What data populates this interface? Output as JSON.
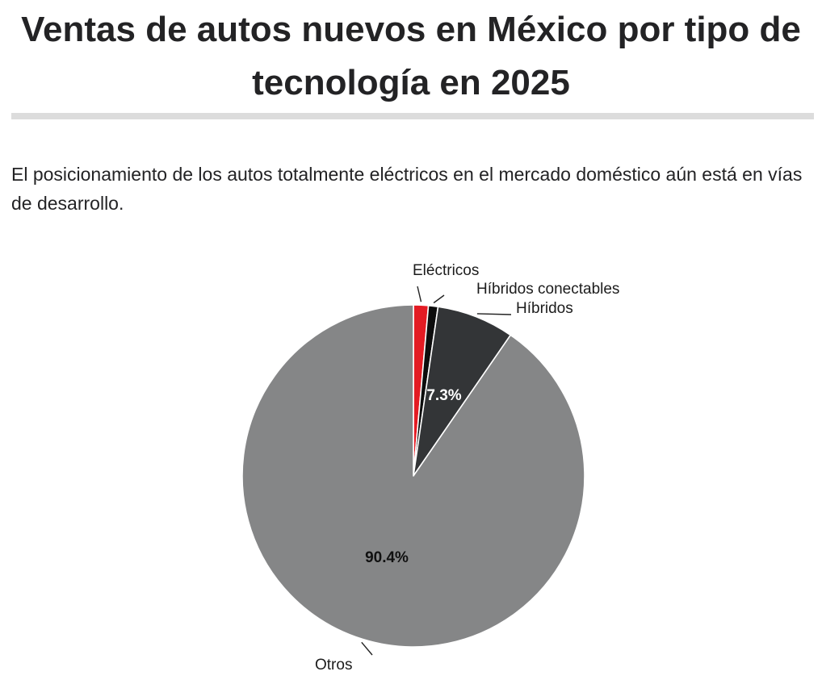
{
  "chart_data": {
    "type": "pie",
    "title": "Ventas de autos nuevos en México por tipo de tecnología en 2025",
    "subtitle": "El posicionamiento de los autos totalmente eléctricos en el mercado doméstico aún está en vías de desarrollo.",
    "slices": [
      {
        "label": "Eléctricos",
        "value": 1.4,
        "color": "#e31b23",
        "value_label": ""
      },
      {
        "label": "Híbridos conectables",
        "value": 0.9,
        "color": "#0d0d0d",
        "value_label": ""
      },
      {
        "label": "Híbridos",
        "value": 7.3,
        "color": "#333537",
        "value_label": "7.3%"
      },
      {
        "label": "Otros",
        "value": 90.4,
        "color": "#858687",
        "value_label": "90.4%"
      }
    ]
  }
}
